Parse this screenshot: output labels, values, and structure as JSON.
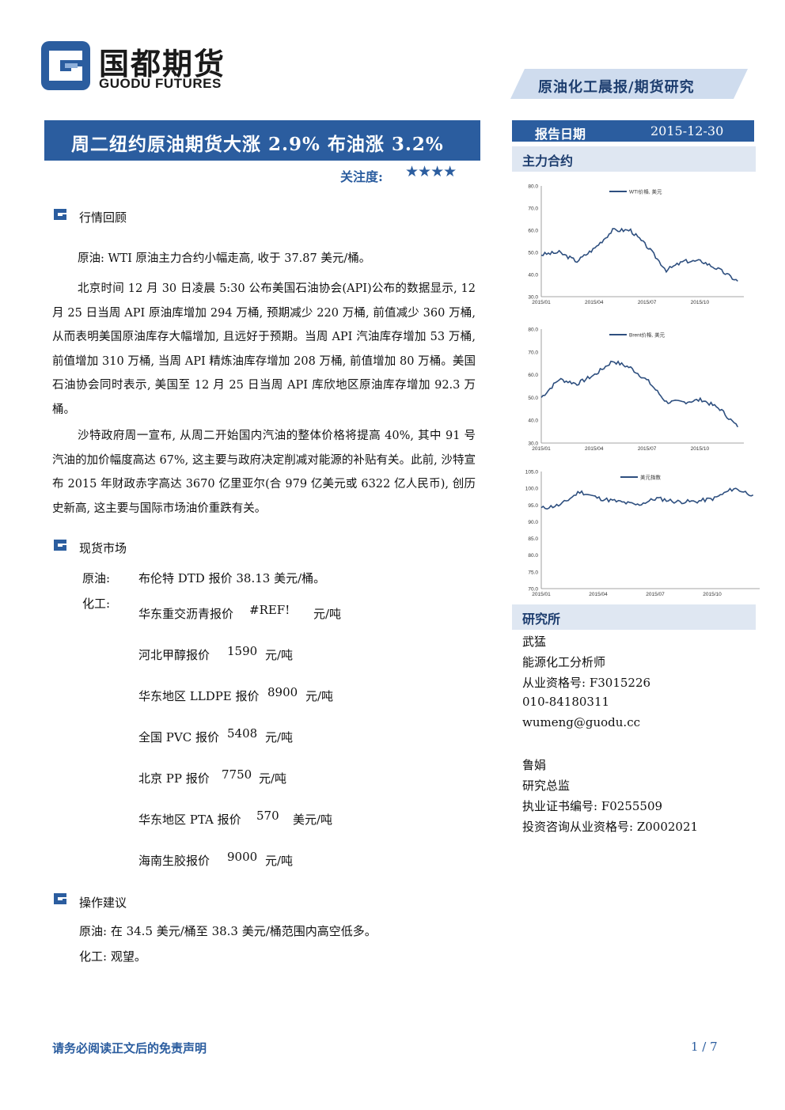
{
  "header": {
    "logo_cn": "国都期货",
    "logo_en": "GUODU FUTURES",
    "report_type": "原油化工晨报/期货研究",
    "title": "周二纽约原油期货大涨 2.9% 布油涨 3.2%",
    "focus_label": "关注度:",
    "focus_stars": "★★★★"
  },
  "side": {
    "report_date_label": "报告日期",
    "report_date": "2015-12-30",
    "main_contract_label": "主力合约",
    "research_label": "研究所",
    "analysts": [
      {
        "name": "武猛",
        "title": "能源化工分析师",
        "line3": "从业资格号: F3015226",
        "line4": "010-84180311",
        "line5": "wumeng@guodu.cc"
      },
      {
        "name": "鲁娟",
        "title": "研究总监",
        "line3": "执业证书编号: F0255509",
        "line4": "投资咨询从业资格号: Z0002021"
      }
    ]
  },
  "sections": {
    "review": {
      "title": "行情回顾",
      "p1": "原油: WTI 原油主力合约小幅走高, 收于 37.87  美元/桶。",
      "p2": "北京时间 12 月 30 日凌晨 5:30 公布美国石油协会(API)公布的数据显示, 12 月 25 日当周 API 原油库增加 294 万桶, 预期减少 220 万桶, 前值减少 360 万桶, 从而表明美国原油库存大幅增加, 且远好于预期。当周 API 汽油库存增加 53 万桶, 前值增加 310 万桶, 当周 API 精炼油库存增加 208 万桶, 前值增加 80 万桶。美国石油协会同时表示, 美国至 12 月 25 日当周 API 库欣地区原油库存增加 92.3 万桶。",
      "p3": "沙特政府周一宣布, 从周二开始国内汽油的整体价格将提高 40%, 其中 91 号汽油的加价幅度高达 67%, 这主要与政府决定削减对能源的补贴有关。此前, 沙特宣布 2015 年财政赤字高达 3670 亿里亚尔(合 979 亿美元或 6322 亿人民币), 创历史新高, 这主要与国际市场油价重跌有关。"
    },
    "spot": {
      "title": "现货市场",
      "crude_label": "原油:",
      "crude_text": "布伦特 DTD 报价 38.13 美元/桶。",
      "chem_label": "化工:",
      "items": [
        {
          "name": "华东重交沥青报价",
          "value": "#REF!",
          "unit": "元/吨"
        },
        {
          "name": "河北甲醇报价",
          "value": "1590",
          "unit": "元/吨"
        },
        {
          "name": "华东地区 LLDPE 报价",
          "value": "8900",
          "unit": "元/吨"
        },
        {
          "name": "全国 PVC 报价",
          "value": "5408",
          "unit": "元/吨"
        },
        {
          "name": "北京 PP 报价",
          "value": "7750",
          "unit": "元/吨"
        },
        {
          "name": "华东地区 PTA 报价",
          "value": "570",
          "unit": "美元/吨"
        },
        {
          "name": "海南生胶报价",
          "value": "9000",
          "unit": "元/吨"
        }
      ]
    },
    "advice": {
      "title": "操作建议",
      "crude": "原油: 在 34.5 美元/桶至 38.3 美元/桶范围内高空低多。",
      "chem": "化工: 观望。"
    }
  },
  "footer": {
    "disclaimer": "请务必阅读正文后的免责声明",
    "page": "1 / 7"
  },
  "chart_data": [
    {
      "type": "line",
      "legend": "WTI价格, 美元",
      "x_ticks": [
        "2015/01",
        "2015/04",
        "2015/07",
        "2015/10"
      ],
      "y_ticks": [
        "30.0",
        "40.0",
        "50.0",
        "60.0",
        "70.0",
        "80.0"
      ],
      "ylim": [
        30,
        80
      ],
      "color": "#2e4f7f",
      "x": [
        "2015-01",
        "2015-02",
        "2015-03",
        "2015-04",
        "2015-05",
        "2015-06",
        "2015-07",
        "2015-08",
        "2015-09",
        "2015-10",
        "2015-11",
        "2015-12"
      ],
      "values": [
        49,
        50,
        46,
        52,
        60,
        60,
        52,
        42,
        46,
        46,
        42,
        37
      ]
    },
    {
      "type": "line",
      "legend": "Brent价格, 美元",
      "x_ticks": [
        "2015/01",
        "2015/04",
        "2015/07",
        "2015/10"
      ],
      "y_ticks": [
        "30.0",
        "40.0",
        "50.0",
        "60.0",
        "70.0",
        "80.0"
      ],
      "ylim": [
        30,
        80
      ],
      "color": "#2e4f7f",
      "x": [
        "2015-01",
        "2015-02",
        "2015-03",
        "2015-04",
        "2015-05",
        "2015-06",
        "2015-07",
        "2015-08",
        "2015-09",
        "2015-10",
        "2015-11",
        "2015-12"
      ],
      "values": [
        50,
        58,
        56,
        60,
        66,
        63,
        57,
        48,
        48,
        49,
        45,
        37
      ]
    },
    {
      "type": "line",
      "legend": "美元指数",
      "x_ticks": [
        "2015/01",
        "2015/04",
        "2015/07",
        "2015/10"
      ],
      "y_ticks": [
        "70.0",
        "75.0",
        "80.0",
        "85.0",
        "90.0",
        "95.0",
        "100.0",
        "105.0"
      ],
      "ylim": [
        70,
        105
      ],
      "color": "#2e4f7f",
      "x": [
        "2015-01",
        "2015-02",
        "2015-03",
        "2015-04",
        "2015-05",
        "2015-06",
        "2015-07",
        "2015-08",
        "2015-09",
        "2015-10",
        "2015-11",
        "2015-12"
      ],
      "values": [
        94,
        95,
        99,
        97,
        96,
        95,
        97,
        96,
        96,
        97,
        100,
        98
      ]
    }
  ]
}
